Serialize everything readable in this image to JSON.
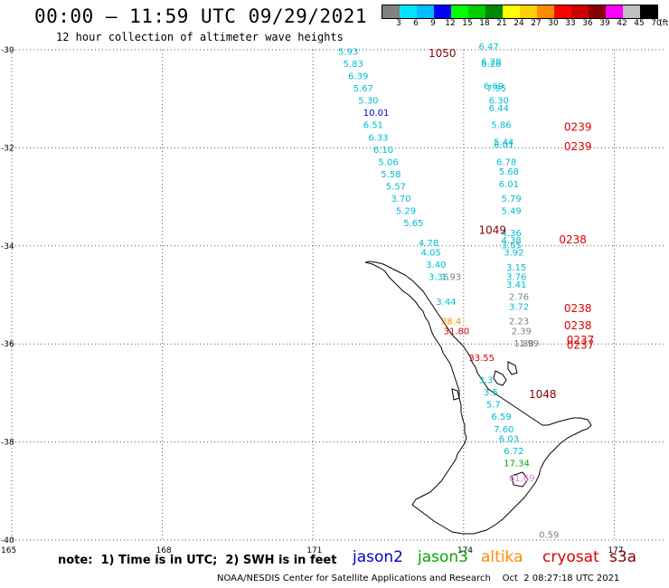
{
  "header": {
    "title": "00:00 – 11:59 UTC 09/29/2021",
    "subtitle": "12 hour collection of altimeter wave heights"
  },
  "colorbar": {
    "unit_label": "(ft)",
    "bins": [
      {
        "label": "3",
        "color": "#808080"
      },
      {
        "label": "6",
        "color": "#00e5ff"
      },
      {
        "label": "9",
        "color": "#00bfff"
      },
      {
        "label": "12",
        "color": "#0000ff"
      },
      {
        "label": "15",
        "color": "#00ff00"
      },
      {
        "label": "18",
        "color": "#00cc00"
      },
      {
        "label": "21",
        "color": "#008800"
      },
      {
        "label": "24",
        "color": "#ffff00"
      },
      {
        "label": "27",
        "color": "#ffd000"
      },
      {
        "label": "30",
        "color": "#ff8c00"
      },
      {
        "label": "33",
        "color": "#ff0000"
      },
      {
        "label": "36",
        "color": "#cc0000"
      },
      {
        "label": "39",
        "color": "#880000"
      },
      {
        "label": "42",
        "color": "#ff00ff"
      },
      {
        "label": "45",
        "color": "#c0c0c0"
      },
      {
        "label": "70",
        "color": "#000000"
      }
    ]
  },
  "chart_data": {
    "type": "scatter",
    "title": "00:00 – 11:59 UTC 09/29/2021",
    "subtitle": "12 hour collection of altimeter wave heights",
    "xlim": [
      165,
      178
    ],
    "ylim": [
      -40,
      -30
    ],
    "x_ticks": [
      "165",
      "168",
      "171",
      "174",
      "177"
    ],
    "y_ticks": [
      "-30",
      "-32",
      "-34",
      "-36",
      "-38",
      "-40"
    ],
    "grid": "dotted",
    "series": [
      {
        "name": "jason3",
        "color": "#00bcd4",
        "points": [
          {
            "x": 171.5,
            "y": -30.1,
            "label": "5.93"
          },
          {
            "x": 171.6,
            "y": -30.35,
            "label": "5.83"
          },
          {
            "x": 171.7,
            "y": -30.6,
            "label": "6.39"
          },
          {
            "x": 171.8,
            "y": -30.85,
            "label": "5.67"
          },
          {
            "x": 171.9,
            "y": -31.1,
            "label": "5.30"
          },
          {
            "x": 172.0,
            "y": -31.6,
            "label": "6.51"
          },
          {
            "x": 172.1,
            "y": -31.85,
            "label": "6.33"
          },
          {
            "x": 172.2,
            "y": -32.1,
            "label": "6.10"
          },
          {
            "x": 172.3,
            "y": -32.35,
            "label": "5.06"
          },
          {
            "x": 172.35,
            "y": -32.6,
            "label": "5.58"
          },
          {
            "x": 172.45,
            "y": -32.85,
            "label": "5.57"
          },
          {
            "x": 172.55,
            "y": -33.1,
            "label": "3.70"
          },
          {
            "x": 172.65,
            "y": -33.35,
            "label": "5.29"
          },
          {
            "x": 172.8,
            "y": -33.6,
            "label": "5.65"
          },
          {
            "x": 173.1,
            "y": -34.0,
            "label": "4.78"
          },
          {
            "x": 173.15,
            "y": -34.2,
            "label": "4.05"
          },
          {
            "x": 173.25,
            "y": -34.45,
            "label": "3.40"
          },
          {
            "x": 173.3,
            "y": -34.7,
            "label": "3.36"
          },
          {
            "x": 173.45,
            "y": -35.2,
            "label": "3.44"
          },
          {
            "x": 174.3,
            "y": -36.8,
            "label": "3.3"
          },
          {
            "x": 174.4,
            "y": -37.05,
            "label": "3.5"
          },
          {
            "x": 174.45,
            "y": -37.3,
            "label": "5.7"
          },
          {
            "x": 174.55,
            "y": -37.55,
            "label": "6.59"
          },
          {
            "x": 174.6,
            "y": -37.8,
            "label": "7.60"
          },
          {
            "x": 174.7,
            "y": -38.0,
            "label": "6.03"
          },
          {
            "x": 174.8,
            "y": -38.25,
            "label": "6.72"
          },
          {
            "x": 174.3,
            "y": -30.0,
            "label": "6.47"
          },
          {
            "x": 174.35,
            "y": -30.3,
            "label": "6.28"
          },
          {
            "x": 174.35,
            "y": -30.35,
            "label": "6.28"
          },
          {
            "x": 174.4,
            "y": -30.8,
            "label": "6.69"
          },
          {
            "x": 174.45,
            "y": -30.85,
            "label": "7.95"
          },
          {
            "x": 174.5,
            "y": -31.1,
            "label": "6.30"
          },
          {
            "x": 174.5,
            "y": -31.25,
            "label": "6.44"
          },
          {
            "x": 174.55,
            "y": -31.6,
            "label": "5.86"
          },
          {
            "x": 174.6,
            "y": -31.95,
            "label": "5.44"
          },
          {
            "x": 174.6,
            "y": -32.0,
            "label": "6.01"
          },
          {
            "x": 174.65,
            "y": -32.35,
            "label": "6.78"
          },
          {
            "x": 174.7,
            "y": -32.55,
            "label": "5.68"
          },
          {
            "x": 174.7,
            "y": -32.8,
            "label": "6.01"
          },
          {
            "x": 174.75,
            "y": -33.1,
            "label": "5.79"
          },
          {
            "x": 174.75,
            "y": -33.35,
            "label": "5.49"
          },
          {
            "x": 174.75,
            "y": -33.8,
            "label": "4.36"
          },
          {
            "x": 174.75,
            "y": -33.95,
            "label": "4.38"
          },
          {
            "x": 174.75,
            "y": -34.05,
            "label": "3.55"
          },
          {
            "x": 174.8,
            "y": -34.2,
            "label": "3.92"
          },
          {
            "x": 174.85,
            "y": -34.5,
            "label": "3.15"
          },
          {
            "x": 174.85,
            "y": -34.7,
            "label": "3.76"
          },
          {
            "x": 174.85,
            "y": -34.85,
            "label": "3.41"
          },
          {
            "x": 174.9,
            "y": -35.3,
            "label": "3.72"
          }
        ]
      },
      {
        "name": "jason2",
        "color": "#0000cc",
        "points": [
          {
            "x": 172.0,
            "y": -31.35,
            "label": "10.01"
          }
        ]
      },
      {
        "name": "gray",
        "color": "#808080",
        "points": [
          {
            "x": 173.55,
            "y": -34.7,
            "label": "1.93"
          },
          {
            "x": 174.9,
            "y": -35.1,
            "label": "2.76"
          },
          {
            "x": 174.9,
            "y": -35.6,
            "label": "2.23"
          },
          {
            "x": 174.95,
            "y": -35.8,
            "label": "2.39"
          },
          {
            "x": 175.0,
            "y": -36.05,
            "label": "1.88"
          },
          {
            "x": 175.1,
            "y": -36.05,
            "label": "1.99"
          },
          {
            "x": 175.5,
            "y": -39.95,
            "label": "0.59"
          }
        ]
      },
      {
        "name": "altika",
        "color": "#ff8c00",
        "points": [
          {
            "x": 173.55,
            "y": -35.6,
            "label": "28.4"
          }
        ]
      },
      {
        "name": "cryosat",
        "color": "#dd0000",
        "points": [
          {
            "x": 173.6,
            "y": -35.8,
            "label": "31.80"
          },
          {
            "x": 174.1,
            "y": -36.35,
            "label": "33.55"
          },
          {
            "x": 176.0,
            "y": -31.65,
            "label": "0239"
          },
          {
            "x": 176.0,
            "y": -32.05,
            "label": "0239"
          },
          {
            "x": 175.9,
            "y": -33.95,
            "label": "0238"
          },
          {
            "x": 176.0,
            "y": -35.35,
            "label": "0238"
          },
          {
            "x": 176.0,
            "y": -35.7,
            "label": "0238"
          },
          {
            "x": 176.05,
            "y": -36.0,
            "label": "0237"
          },
          {
            "x": 176.05,
            "y": -36.1,
            "label": "0237"
          }
        ]
      },
      {
        "name": "s3a",
        "color": "#880000",
        "points": [
          {
            "x": 173.3,
            "y": -30.15,
            "label": "1050"
          },
          {
            "x": 174.3,
            "y": -33.75,
            "label": "1049"
          },
          {
            "x": 175.3,
            "y": -37.1,
            "label": "1048"
          }
        ]
      },
      {
        "name": "green",
        "color": "#00aa00",
        "points": [
          {
            "x": 174.8,
            "y": -38.5,
            "label": "17.34"
          }
        ]
      },
      {
        "name": "pink",
        "color": "#e080e0",
        "points": [
          {
            "x": 174.9,
            "y": -38.8,
            "label": "61.69"
          }
        ]
      }
    ]
  },
  "footer": {
    "note": "note:  1) Time is in UTC;  2) SWH is in feet",
    "satellites": [
      {
        "label": "jason2",
        "color": "#0000cc"
      },
      {
        "label": "jason3",
        "color": "#00aa00"
      },
      {
        "label": "altika",
        "color": "#ff8c00"
      },
      {
        "label": "cryosat",
        "color": "#dd0000"
      },
      {
        "label": "s3a",
        "color": "#880000"
      }
    ],
    "credit": "NOAA/NESDIS Center for Satellite Applications and Research    Oct  2 08:27:18 UTC 2021"
  }
}
